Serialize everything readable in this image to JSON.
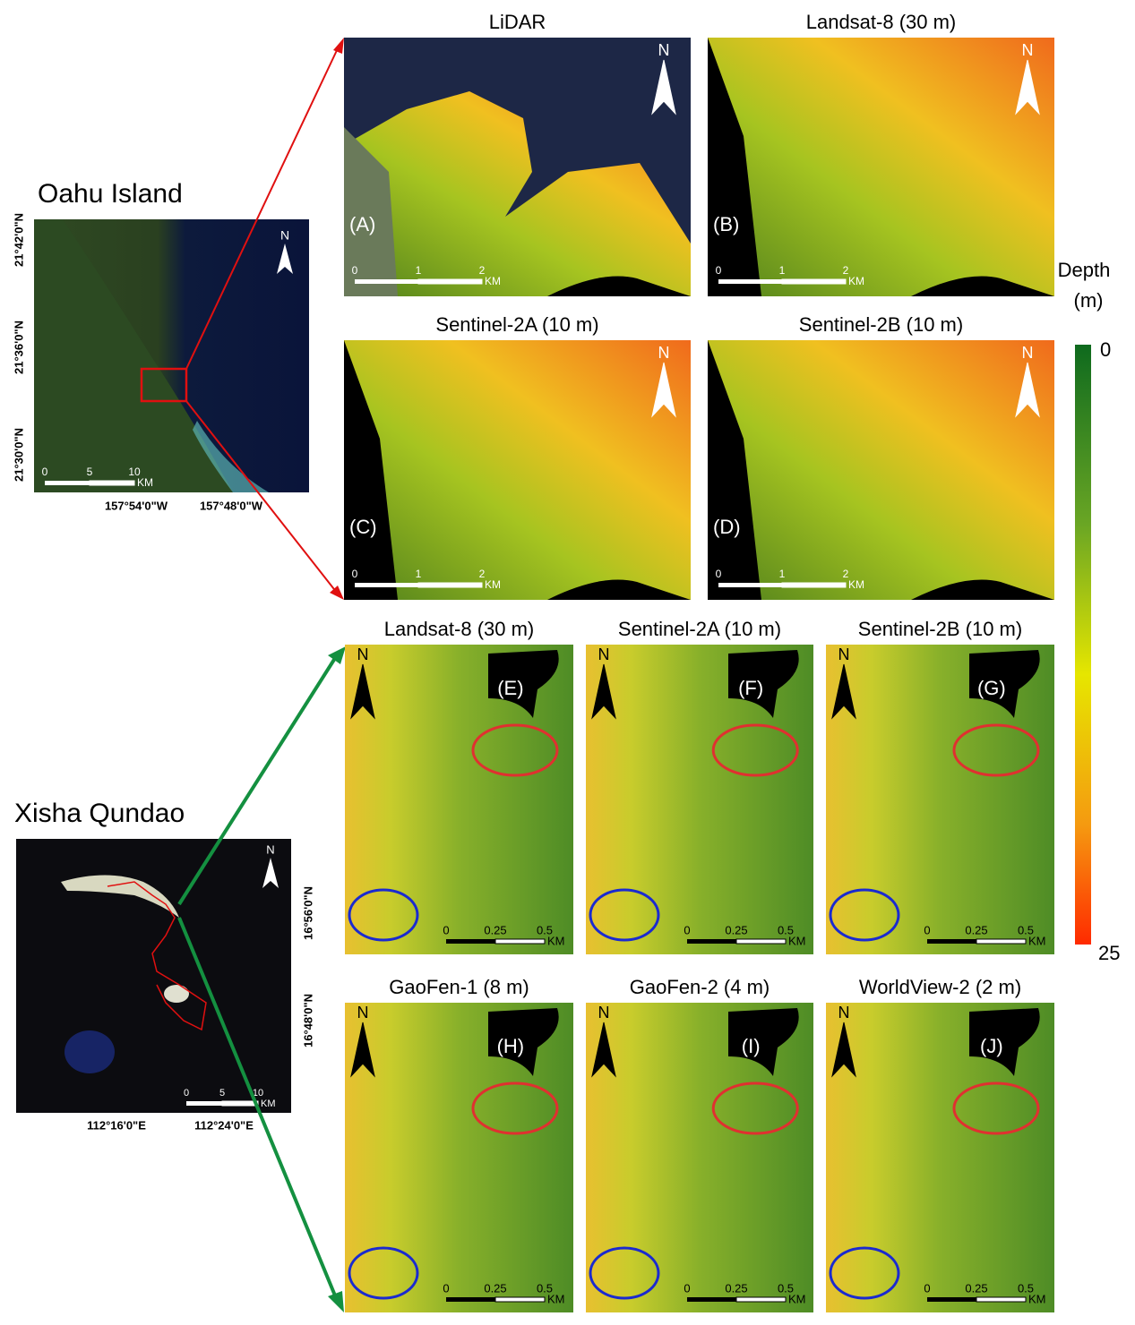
{
  "oahu": {
    "title": "Oahu Island",
    "lat_labels": [
      "21°42'0\"N",
      "21°36'0\"N",
      "21°30'0\"N"
    ],
    "lon_labels": [
      "157°54'0\"W",
      "157°48'0\"W"
    ],
    "scale": [
      "0",
      "5",
      "10",
      "KM"
    ],
    "north": "N"
  },
  "xisha": {
    "title": "Xisha Qundao",
    "lat_labels": [
      "16°56'0\"N",
      "16°48'0\"N"
    ],
    "lon_labels": [
      "112°16'0\"E",
      "112°24'0\"E"
    ],
    "scale": [
      "0",
      "5",
      "10",
      "KM"
    ],
    "north": "N"
  },
  "legend": {
    "title": [
      "Depth",
      "(m)"
    ],
    "min": 0,
    "max": 25
  },
  "panels": [
    {
      "title": "LiDAR",
      "label": "(A)",
      "north": "N",
      "scale": [
        "0",
        "1",
        "2",
        "KM"
      ]
    },
    {
      "title": "Landsat-8 (30 m)",
      "label": "(B)",
      "north": "N",
      "scale": [
        "0",
        "1",
        "2",
        "KM"
      ]
    },
    {
      "title": "Sentinel-2A (10 m)",
      "label": "(C)",
      "north": "N",
      "scale": [
        "0",
        "1",
        "2",
        "KM"
      ]
    },
    {
      "title": "Sentinel-2B (10 m)",
      "label": "(D)",
      "north": "N",
      "scale": [
        "0",
        "1",
        "2",
        "KM"
      ]
    },
    {
      "title": "Landsat-8 (30 m)",
      "label": "(E)",
      "north": "N",
      "scale": [
        "0",
        "0.25",
        "0.5",
        "KM"
      ]
    },
    {
      "title": "Sentinel-2A (10 m)",
      "label": "(F)",
      "north": "N",
      "scale": [
        "0",
        "0.25",
        "0.5",
        "KM"
      ]
    },
    {
      "title": "Sentinel-2B (10 m)",
      "label": "(G)",
      "north": "N",
      "scale": [
        "0",
        "0.25",
        "0.5",
        "KM"
      ]
    },
    {
      "title": "GaoFen-1 (8 m)",
      "label": "(H)",
      "north": "N",
      "scale": [
        "0",
        "0.25",
        "0.5",
        "KM"
      ]
    },
    {
      "title": "GaoFen-2 (4 m)",
      "label": "(I)",
      "north": "N",
      "scale": [
        "0",
        "0.25",
        "0.5",
        "KM"
      ]
    },
    {
      "title": "WorldView-2 (2 m)",
      "label": "(J)",
      "north": "N",
      "scale": [
        "0",
        "0.25",
        "0.5",
        "KM"
      ]
    }
  ]
}
